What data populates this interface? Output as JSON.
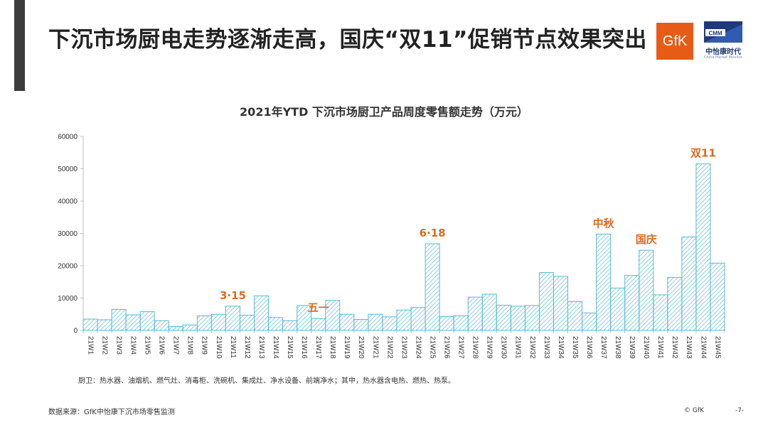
{
  "slide": {
    "title": "下沉市场厨电走势逐渐走高，国庆“双11”促销节点效果突出",
    "footnote": "厨卫：热水器、油烟机、燃气灶、消毒柜、洗碗机、集成灶、净水设备、前端净水；其中，热水器含电热、燃热、热泵。",
    "source": "数据来源：GfK中怡康下沉市场零售监测",
    "copyright": "© GfK",
    "page_number": "-7-"
  },
  "logos": {
    "gfk_text": "GfK",
    "cmm_text": "CMM",
    "cmm_name": "中怡康时代",
    "cmm_subtext": "China Market Monitor"
  },
  "colors": {
    "bar_stroke": "#5bb8d6",
    "bar_hatch": "#8fd0e6",
    "annotation": "#e0691f",
    "axis": "#bfbfbf",
    "text": "#333333"
  },
  "chart_data": {
    "type": "bar",
    "title": "2021年YTD 下沉市场厨卫产品周度零售额走势（万元）",
    "xlabel": "",
    "ylabel": "",
    "ylim": [
      0,
      60000
    ],
    "yticks": [
      0,
      10000,
      20000,
      30000,
      40000,
      50000,
      60000
    ],
    "grid": false,
    "legend": "none",
    "categories": [
      "21W1",
      "21W2",
      "21W3",
      "21W4",
      "21W5",
      "21W6",
      "21W7",
      "21W8",
      "21W9",
      "21W10",
      "21W11",
      "21W12",
      "21W13",
      "21W14",
      "21W15",
      "21W16",
      "21W17",
      "21W18",
      "21W19",
      "21W20",
      "21W21",
      "21W22",
      "21W23",
      "21W24",
      "21W25",
      "21W26",
      "21W27",
      "21W28",
      "21W29",
      "21W30",
      "21W31",
      "21W32",
      "21W33",
      "21W34",
      "21W35",
      "21W36",
      "21W37",
      "21W38",
      "21W39",
      "21W40",
      "21W41",
      "21W42",
      "21W43",
      "21W44",
      "21W45"
    ],
    "values": [
      3500,
      3300,
      6500,
      4800,
      5800,
      3000,
      1200,
      1700,
      4500,
      5000,
      7500,
      4700,
      10700,
      4000,
      3000,
      7700,
      3700,
      9300,
      5000,
      3400,
      5000,
      4200,
      6300,
      7100,
      26800,
      4300,
      4500,
      10300,
      11200,
      7800,
      7500,
      7700,
      17900,
      16700,
      8900,
      5400,
      29800,
      13100,
      17000,
      24800,
      11000,
      16400,
      28900,
      51500,
      20800
    ],
    "annotations": [
      {
        "label": "3·15",
        "index": 10
      },
      {
        "label": "五一",
        "index": 16
      },
      {
        "label": "6·18",
        "index": 24
      },
      {
        "label": "中秋",
        "index": 36
      },
      {
        "label": "国庆",
        "index": 39
      },
      {
        "label": "双11",
        "index": 43
      }
    ]
  }
}
